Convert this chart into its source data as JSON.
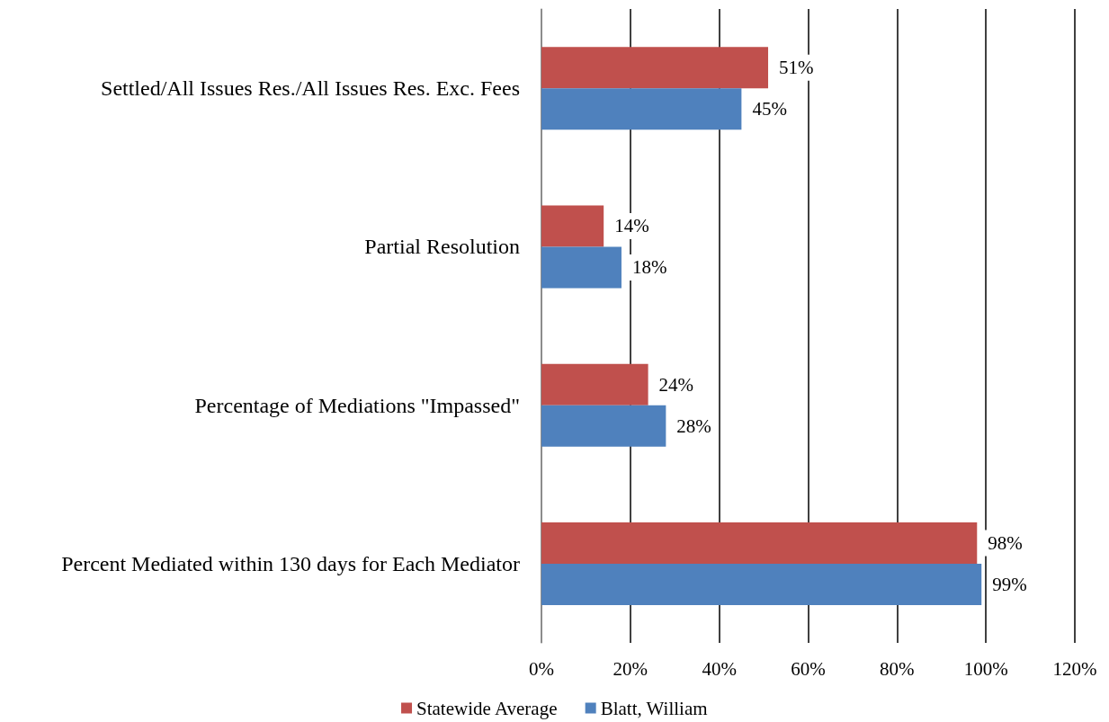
{
  "chart_data": {
    "type": "bar",
    "orientation": "horizontal",
    "categories": [
      "Settled/All Issues Res./All Issues Res. Exc. Fees",
      "Partial Resolution",
      "Percentage of Mediations \"Impassed\"",
      "Percent Mediated within 130 days for Each Mediator"
    ],
    "series": [
      {
        "name": "Statewide Average",
        "color": "#c0504d",
        "values": [
          51,
          14,
          24,
          98
        ],
        "value_labels": [
          "51%",
          "14%",
          "24%",
          "98%"
        ]
      },
      {
        "name": "Blatt, William",
        "color": "#4f81bd",
        "values": [
          45,
          18,
          28,
          99
        ],
        "value_labels": [
          "45%",
          "18%",
          "28%",
          "99%"
        ]
      }
    ],
    "xlim": [
      0,
      120
    ],
    "xticks": [
      {
        "value": 0,
        "label": "0%"
      },
      {
        "value": 20,
        "label": "20%"
      },
      {
        "value": 40,
        "label": "40%"
      },
      {
        "value": 60,
        "label": "60%"
      },
      {
        "value": 80,
        "label": "80%"
      },
      {
        "value": 100,
        "label": "100%"
      },
      {
        "value": 120,
        "label": "120%"
      }
    ],
    "grid": "x",
    "legend": "bottom"
  }
}
